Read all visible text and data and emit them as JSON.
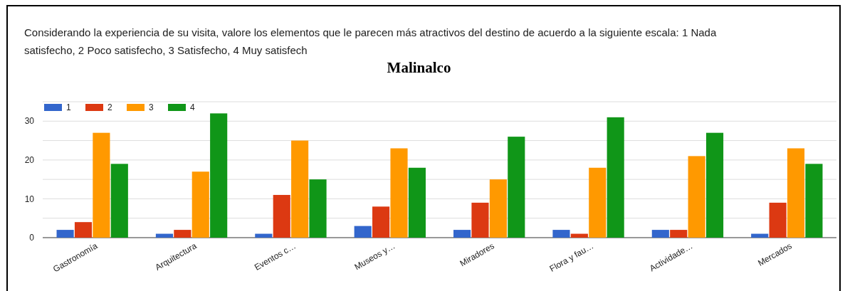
{
  "chart_data": {
    "type": "bar",
    "subtitle": "Considerando la experiencia de su visita, valore los elementos que le parecen más atractivos del destino de acuerdo a la siguiente escala: 1 Nada satisfecho, 2 Poco satisfecho, 3 Satisfecho, 4 Muy satisfech",
    "title": "Malinalco",
    "categories": [
      "Gastronomía",
      "Arquitectura",
      "Eventos c…",
      "Museos y…",
      "Miradores",
      "Flora y fau…",
      "Actividade…",
      "Mercados"
    ],
    "series": [
      {
        "name": "1",
        "color": "#3366cc",
        "values": [
          2,
          1,
          1,
          3,
          2,
          2,
          2,
          1
        ]
      },
      {
        "name": "2",
        "color": "#dc3912",
        "values": [
          4,
          2,
          11,
          8,
          9,
          1,
          2,
          9
        ]
      },
      {
        "name": "3",
        "color": "#ff9900",
        "values": [
          27,
          17,
          25,
          23,
          15,
          18,
          21,
          23
        ]
      },
      {
        "name": "4",
        "color": "#109618",
        "values": [
          19,
          32,
          15,
          18,
          26,
          31,
          27,
          19
        ]
      }
    ],
    "ylim": [
      0,
      35
    ],
    "yticks": [
      0,
      {
        "value": 5,
        "label": null
      },
      10,
      {
        "value": 15,
        "label": null
      },
      20,
      {
        "value": 25,
        "label": null
      },
      30,
      {
        "value": 35,
        "label": null
      }
    ],
    "grid": true,
    "legend": "top left"
  }
}
